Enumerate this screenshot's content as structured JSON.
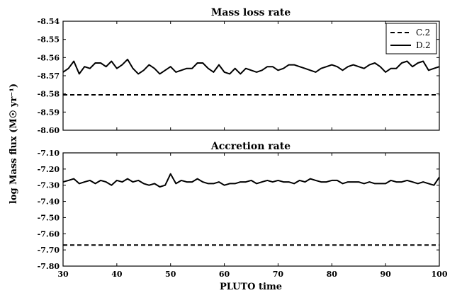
{
  "chart_data": [
    {
      "type": "line",
      "title": "Mass loss rate",
      "xlim": [
        30,
        100
      ],
      "ylim": [
        -8.6,
        -8.54
      ],
      "y_ticks": [
        "-8.54",
        "-8.55",
        "-8.56",
        "-8.57",
        "-8.58",
        "-8.59",
        "-8.60"
      ],
      "legend_position": "top-right",
      "series": [
        {
          "name": "C.2",
          "style": "dashed",
          "color": "#000000",
          "x": [
            30,
            100
          ],
          "y": [
            -8.5805,
            -8.5805
          ]
        },
        {
          "name": "D.2",
          "style": "solid",
          "color": "#000000",
          "x": [
            30,
            31,
            32,
            33,
            34,
            35,
            36,
            37,
            38,
            39,
            40,
            41,
            42,
            43,
            44,
            45,
            46,
            47,
            48,
            49,
            50,
            51,
            52,
            53,
            54,
            55,
            56,
            57,
            58,
            59,
            60,
            61,
            62,
            63,
            64,
            65,
            66,
            67,
            68,
            69,
            70,
            71,
            72,
            73,
            74,
            75,
            76,
            77,
            78,
            79,
            80,
            81,
            82,
            83,
            84,
            85,
            86,
            87,
            88,
            89,
            90,
            91,
            92,
            93,
            94,
            95,
            96,
            97,
            98,
            99,
            100
          ],
          "y": [
            -8.568,
            -8.566,
            -8.562,
            -8.569,
            -8.565,
            -8.566,
            -8.563,
            -8.563,
            -8.565,
            -8.562,
            -8.566,
            -8.564,
            -8.561,
            -8.566,
            -8.569,
            -8.567,
            -8.564,
            -8.566,
            -8.569,
            -8.567,
            -8.565,
            -8.568,
            -8.567,
            -8.566,
            -8.566,
            -8.563,
            -8.563,
            -8.566,
            -8.568,
            -8.564,
            -8.568,
            -8.569,
            -8.566,
            -8.569,
            -8.566,
            -8.567,
            -8.568,
            -8.567,
            -8.565,
            -8.565,
            -8.567,
            -8.566,
            -8.564,
            -8.564,
            -8.565,
            -8.566,
            -8.567,
            -8.568,
            -8.566,
            -8.565,
            -8.564,
            -8.565,
            -8.567,
            -8.565,
            -8.564,
            -8.565,
            -8.566,
            -8.564,
            -8.563,
            -8.565,
            -8.568,
            -8.566,
            -8.566,
            -8.563,
            -8.562,
            -8.565,
            -8.563,
            -8.562,
            -8.567,
            -8.566,
            -8.565
          ]
        }
      ]
    },
    {
      "type": "line",
      "title": "Accretion rate",
      "xlim": [
        30,
        100
      ],
      "ylim": [
        -7.8,
        -7.1
      ],
      "y_ticks": [
        "-7.10",
        "-7.20",
        "-7.30",
        "-7.40",
        "-7.50",
        "-7.60",
        "-7.70",
        "-7.80"
      ],
      "x_ticks": [
        "30",
        "40",
        "50",
        "60",
        "70",
        "80",
        "90",
        "100"
      ],
      "xlabel": "PLUTO time",
      "series": [
        {
          "name": "C.2",
          "style": "dashed",
          "color": "#000000",
          "x": [
            30,
            100
          ],
          "y": [
            -7.67,
            -7.67
          ]
        },
        {
          "name": "D.2",
          "style": "solid",
          "color": "#000000",
          "x": [
            30,
            31,
            32,
            33,
            34,
            35,
            36,
            37,
            38,
            39,
            40,
            41,
            42,
            43,
            44,
            45,
            46,
            47,
            48,
            49,
            50,
            51,
            52,
            53,
            54,
            55,
            56,
            57,
            58,
            59,
            60,
            61,
            62,
            63,
            64,
            65,
            66,
            67,
            68,
            69,
            70,
            71,
            72,
            73,
            74,
            75,
            76,
            77,
            78,
            79,
            80,
            81,
            82,
            83,
            84,
            85,
            86,
            87,
            88,
            89,
            90,
            91,
            92,
            93,
            94,
            95,
            96,
            97,
            98,
            99,
            100
          ],
          "y": [
            -7.28,
            -7.27,
            -7.26,
            -7.29,
            -7.28,
            -7.27,
            -7.29,
            -7.27,
            -7.28,
            -7.3,
            -7.27,
            -7.28,
            -7.26,
            -7.28,
            -7.27,
            -7.29,
            -7.3,
            -7.29,
            -7.31,
            -7.3,
            -7.23,
            -7.29,
            -7.27,
            -7.28,
            -7.28,
            -7.26,
            -7.28,
            -7.29,
            -7.29,
            -7.28,
            -7.3,
            -7.29,
            -7.29,
            -7.28,
            -7.28,
            -7.27,
            -7.29,
            -7.28,
            -7.27,
            -7.28,
            -7.27,
            -7.28,
            -7.28,
            -7.29,
            -7.27,
            -7.28,
            -7.26,
            -7.27,
            -7.28,
            -7.28,
            -7.27,
            -7.27,
            -7.29,
            -7.28,
            -7.28,
            -7.28,
            -7.29,
            -7.28,
            -7.29,
            -7.29,
            -7.29,
            -7.27,
            -7.28,
            -7.28,
            -7.27,
            -7.28,
            -7.29,
            -7.28,
            -7.29,
            -7.3,
            -7.25
          ]
        }
      ]
    }
  ],
  "shared_ylabel": "log Mass flux (M☉ yr⁻¹)"
}
